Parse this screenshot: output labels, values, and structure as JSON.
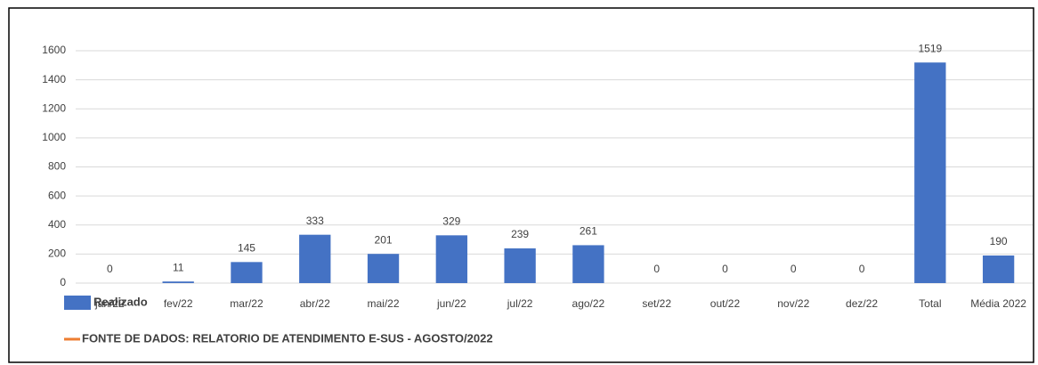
{
  "chart_data": {
    "type": "bar",
    "categories": [
      "jan/22",
      "fev/22",
      "mar/22",
      "abr/22",
      "mai/22",
      "jun/22",
      "jul/22",
      "ago/22",
      "set/22",
      "out/22",
      "nov/22",
      "dez/22",
      "Total",
      "Média 2022"
    ],
    "series": [
      {
        "name": "Realizado",
        "color": "#4472c4",
        "values": [
          0,
          11,
          145,
          333,
          201,
          329,
          239,
          261,
          0,
          0,
          0,
          0,
          1519,
          190
        ]
      },
      {
        "name": "FONTE DE DADOS: RELATORIO DE ATENDIMENTO E-SUS - AGOSTO/2022",
        "color": "#ed7d31",
        "type": "line",
        "values": [
          null,
          null,
          null,
          null,
          null,
          null,
          null,
          null,
          null,
          null,
          null,
          null,
          null,
          null
        ]
      }
    ],
    "ylim": [
      0,
      1600
    ],
    "yticks": [
      0,
      200,
      400,
      600,
      800,
      1000,
      1200,
      1400,
      1600
    ],
    "grid": true
  }
}
